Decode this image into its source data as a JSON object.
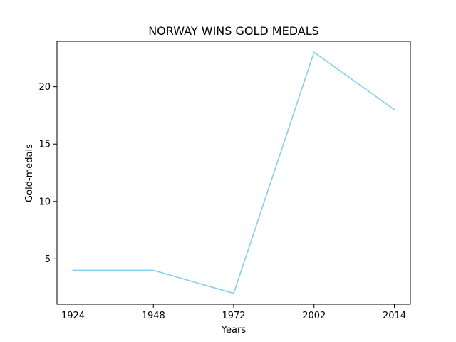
{
  "chart_data": {
    "type": "line",
    "title": "NORWAY WINS GOLD MEDALS",
    "xlabel": "Years",
    "ylabel": "Gold-medals",
    "categories": [
      "1924",
      "1948",
      "1972",
      "2002",
      "2014"
    ],
    "series": [
      {
        "values": [
          4,
          4,
          2,
          23,
          18
        ],
        "color": "#87ceeb"
      }
    ],
    "y_ticks": [
      5,
      10,
      15,
      20
    ],
    "ylim": [
      1.05,
      23.95
    ],
    "grid": false,
    "legend": "none"
  }
}
